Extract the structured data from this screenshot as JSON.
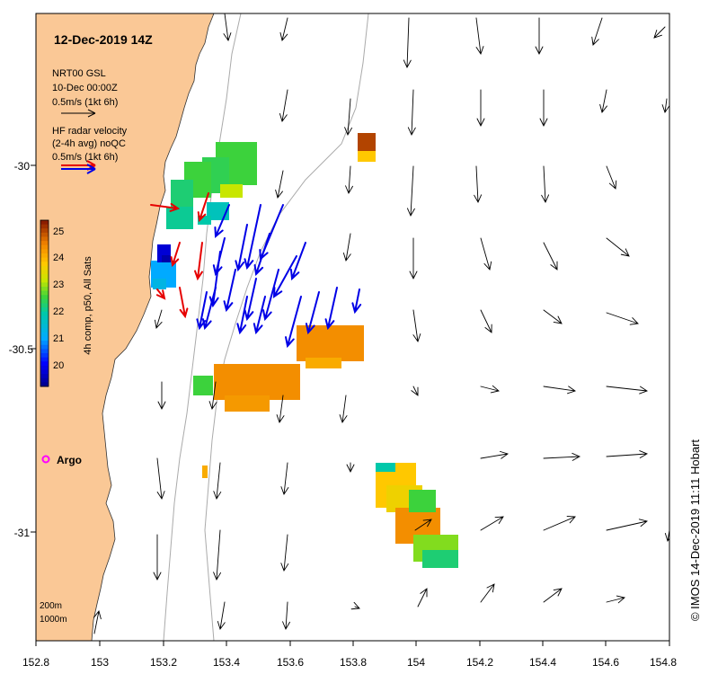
{
  "title": "12-Dec-2019 14Z",
  "model_legend": {
    "label1": "NRT00 GSL",
    "label2": "10-Dec 00:00Z",
    "label3": "0.5m/s (1kt 6h)"
  },
  "radar_legend": {
    "label1": "HF radar velocity",
    "label2": "(2-4h avg) noQC",
    "label3": "0.5m/s (1kt 6h)"
  },
  "colorbar": {
    "title": "4h comp, p50, All Sats",
    "ticks": [
      "20",
      "21",
      "22",
      "23",
      "24",
      "25"
    ],
    "range": [
      19.5,
      25.5
    ]
  },
  "argo": {
    "label": "Argo",
    "color": "#ff00ff"
  },
  "depth_labels": [
    "200m",
    "1000m"
  ],
  "x_ticks": [
    "152.8",
    "153",
    "153.2",
    "153.4",
    "153.6",
    "153.8",
    "154",
    "154.2",
    "154.4",
    "154.6",
    "154.8"
  ],
  "y_ticks": [
    "-30",
    "-30.5",
    "-31"
  ],
  "credit": "© IMOS 14-Dec-2019 11:11 Hobart",
  "colors": {
    "land": "#fac896",
    "model_arrow": "#000000",
    "radar_arrow_blue": "#0000e6",
    "radar_arrow_red": "#e60000",
    "isobath": "#aaaaaa"
  }
}
